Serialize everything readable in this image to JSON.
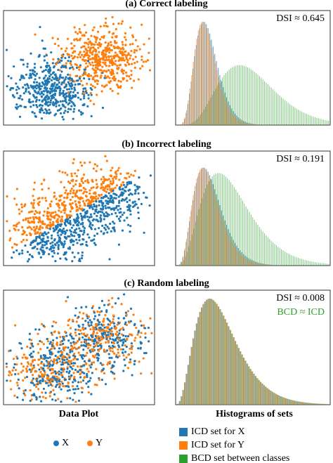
{
  "panels": [
    {
      "title": "(a) Correct labeling",
      "annotations": [
        {
          "text": "DSI ≈ 0.645",
          "color": "#000000"
        }
      ]
    },
    {
      "title": "(b) Incorrect labeling",
      "annotations": [
        {
          "text": "DSI ≈ 0.191",
          "color": "#000000"
        }
      ]
    },
    {
      "title": "(c) Random labeling",
      "annotations": [
        {
          "text": "DSI ≈ 0.008",
          "color": "#000000"
        },
        {
          "text": "BCD ≈ ICD",
          "color": "#2ca02c"
        }
      ]
    }
  ],
  "captions": {
    "left": "Data Plot",
    "right": "Histograms of sets"
  },
  "scatter_legend": [
    {
      "label": "X",
      "color": "#1f77b4"
    },
    {
      "label": "Y",
      "color": "#ff7f0e"
    }
  ],
  "histogram_legend": [
    {
      "label": "ICD set for X",
      "color": "#1f77b4"
    },
    {
      "label": "ICD set for Y",
      "color": "#ff7f0e"
    },
    {
      "label": "BCD set between classes",
      "color": "#2ca02c"
    }
  ]
}
